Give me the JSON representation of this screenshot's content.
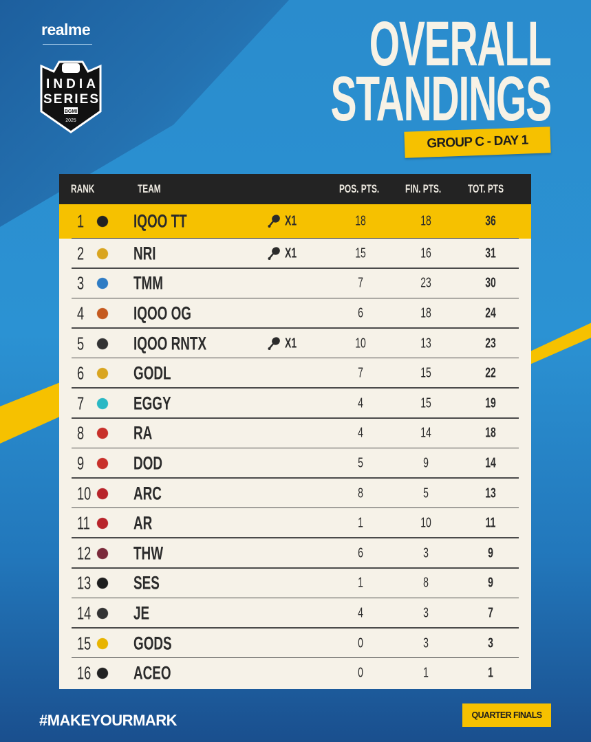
{
  "brand": "realme",
  "logo_text": [
    "INDIA",
    "SERIES",
    "BGMI",
    "2025"
  ],
  "title_line1": "OVERALL",
  "title_line2": "STANDINGS",
  "subtitle": "GROUP C - DAY 1",
  "colors": {
    "accent": "#f6c100",
    "header": "#232323",
    "table_bg": "#f6f2e8",
    "background": "#2a8ccd"
  },
  "table": {
    "headers": {
      "rank": "RANK",
      "team": "TEAM",
      "pos": "POS. PTS.",
      "fin": "FIN. PTS.",
      "tot": "TOT. PTS"
    },
    "rows": [
      {
        "rank": "1",
        "team": "IQOO TT",
        "wins": "X1",
        "pos": "18",
        "fin": "18",
        "tot": "36",
        "logo_color": "#222"
      },
      {
        "rank": "2",
        "team": "NRI",
        "wins": "X1",
        "pos": "15",
        "fin": "16",
        "tot": "31",
        "logo_color": "#d9a520"
      },
      {
        "rank": "3",
        "team": "TMM",
        "wins": "",
        "pos": "7",
        "fin": "23",
        "tot": "30",
        "logo_color": "#2f7cc4"
      },
      {
        "rank": "4",
        "team": "IQOO OG",
        "wins": "",
        "pos": "6",
        "fin": "18",
        "tot": "24",
        "logo_color": "#c55a1f"
      },
      {
        "rank": "5",
        "team": "IQOO RNTX",
        "wins": "X1",
        "pos": "10",
        "fin": "13",
        "tot": "23",
        "logo_color": "#333"
      },
      {
        "rank": "6",
        "team": "GODL",
        "wins": "",
        "pos": "7",
        "fin": "15",
        "tot": "22",
        "logo_color": "#d9a520"
      },
      {
        "rank": "7",
        "team": "EGGY",
        "wins": "",
        "pos": "4",
        "fin": "15",
        "tot": "19",
        "logo_color": "#2ab8c4"
      },
      {
        "rank": "8",
        "team": "RA",
        "wins": "",
        "pos": "4",
        "fin": "14",
        "tot": "18",
        "logo_color": "#c8302a"
      },
      {
        "rank": "9",
        "team": "DOD",
        "wins": "",
        "pos": "5",
        "fin": "9",
        "tot": "14",
        "logo_color": "#c8302a"
      },
      {
        "rank": "10",
        "team": "ARC",
        "wins": "",
        "pos": "8",
        "fin": "5",
        "tot": "13",
        "logo_color": "#b8242a"
      },
      {
        "rank": "11",
        "team": "AR",
        "wins": "",
        "pos": "1",
        "fin": "10",
        "tot": "11",
        "logo_color": "#b8242a"
      },
      {
        "rank": "12",
        "team": "THW",
        "wins": "",
        "pos": "6",
        "fin": "3",
        "tot": "9",
        "logo_color": "#7a2a3a"
      },
      {
        "rank": "13",
        "team": "SES",
        "wins": "",
        "pos": "1",
        "fin": "8",
        "tot": "9",
        "logo_color": "#1e1e1e"
      },
      {
        "rank": "14",
        "team": "JE",
        "wins": "",
        "pos": "4",
        "fin": "3",
        "tot": "7",
        "logo_color": "#333"
      },
      {
        "rank": "15",
        "team": "GODS",
        "wins": "",
        "pos": "0",
        "fin": "3",
        "tot": "3",
        "logo_color": "#e8b400"
      },
      {
        "rank": "16",
        "team": "ACEO",
        "wins": "",
        "pos": "0",
        "fin": "1",
        "tot": "1",
        "logo_color": "#222"
      }
    ]
  },
  "footer": {
    "hashtag": "#MAKEYOURMARK",
    "stage": "QUARTER FINALS"
  }
}
